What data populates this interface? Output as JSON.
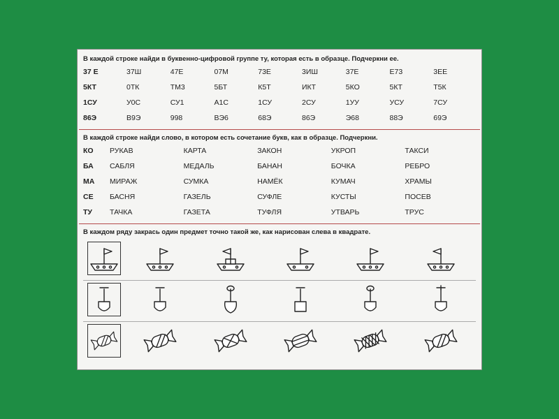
{
  "section1": {
    "instruction": "В каждой строке найди в буквенно-цифровой группе ту, которая есть в образце. Подчеркни ее.",
    "rows": [
      {
        "lead": "37 Е",
        "cells": [
          "37Ш",
          "47Е",
          "07М",
          "73Е",
          "3ИШ",
          "37Е",
          "Е73",
          "3ЕЕ"
        ]
      },
      {
        "lead": "5КТ",
        "cells": [
          "0ТК",
          "ТМ3",
          "5БТ",
          "К5Т",
          "ИКТ",
          "5КО",
          "5КТ",
          "Т5К"
        ]
      },
      {
        "lead": "1СУ",
        "cells": [
          "У0С",
          "СУ1",
          "А1С",
          "1СУ",
          "2СУ",
          "1УУ",
          "УСУ",
          "7СУ"
        ]
      },
      {
        "lead": "86Э",
        "cells": [
          "В9Э",
          "998",
          "ВЭ6",
          "68Э",
          "86Э",
          "Э68",
          "88Э",
          "69Э"
        ]
      }
    ]
  },
  "section2": {
    "instruction": "В каждой строке найди слово, в котором есть сочетание букв, как в образце. Подчеркни.",
    "rows": [
      {
        "lead": "КО",
        "cells": [
          "РУКАВ",
          "КАРТА",
          "ЗАКОН",
          "УКРОП",
          "ТАКСИ"
        ]
      },
      {
        "lead": "БА",
        "cells": [
          "САБЛЯ",
          "МЕДАЛЬ",
          "БАНАН",
          "БОЧКА",
          "РЕБРО"
        ]
      },
      {
        "lead": "МА",
        "cells": [
          "МИРАЖ",
          "СУМКА",
          "НАМЁК",
          "КУМАЧ",
          "ХРАМЫ"
        ]
      },
      {
        "lead": "СЕ",
        "cells": [
          "БАСНЯ",
          "ГАЗЕЛЬ",
          "СУФЛЕ",
          "КУСТЫ",
          "ПОСЕВ"
        ]
      },
      {
        "lead": "ТУ",
        "cells": [
          "ТАЧКА",
          "ГАЗЕТА",
          "ТУФЛЯ",
          "УТВАРЬ",
          "ТРУС"
        ]
      }
    ]
  },
  "section3": {
    "instruction": "В каждом ряду закрась один предмет точно такой же, как нарисован слева в квадрате.",
    "rowTypes": [
      "boat",
      "shovel",
      "candy"
    ],
    "variants": {
      "boat": {
        "ref": {
          "portholes": 3,
          "flagDir": "right",
          "windows": false
        },
        "items": [
          {
            "portholes": 3,
            "flagDir": "right",
            "windows": false
          },
          {
            "portholes": 2,
            "flagDir": "left",
            "windows": true
          },
          {
            "portholes": 2,
            "flagDir": "right",
            "windows": false
          },
          {
            "portholes": 3,
            "flagDir": "right",
            "windows": false
          },
          {
            "portholes": 3,
            "flagDir": "left",
            "windows": false
          }
        ]
      },
      "shovel": {
        "ref": {
          "blade": "spade",
          "handle": "bar"
        },
        "items": [
          {
            "blade": "spade",
            "handle": "bar"
          },
          {
            "blade": "round",
            "handle": "loop"
          },
          {
            "blade": "square",
            "handle": "bar"
          },
          {
            "blade": "spade",
            "handle": "loop"
          },
          {
            "blade": "spade",
            "handle": "tee"
          }
        ]
      },
      "candy": {
        "ref": {
          "pattern": "diag"
        },
        "items": [
          {
            "pattern": "diag"
          },
          {
            "pattern": "cross"
          },
          {
            "pattern": "horiz"
          },
          {
            "pattern": "mesh"
          },
          {
            "pattern": "diag"
          }
        ]
      }
    }
  },
  "colors": {
    "bg": "#1e8d44",
    "paper": "#f5f5f3",
    "sepRed": "#b54a4a"
  }
}
